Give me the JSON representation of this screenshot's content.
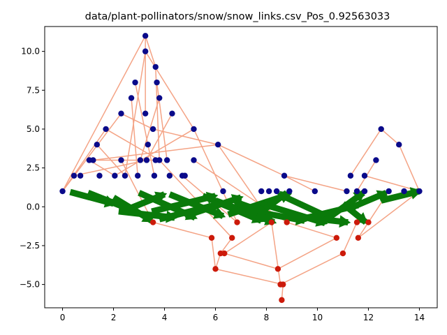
{
  "chart_data": {
    "type": "scatter",
    "title": "data/plant-pollinators/snow/snow_links.csv_Pos_0.92563033",
    "xlabel": "",
    "ylabel": "",
    "xlim": [
      -0.7,
      14.7
    ],
    "ylim": [
      -6.5,
      11.6
    ],
    "grid": false,
    "x_ticks": [
      0,
      2,
      4,
      6,
      8,
      10,
      12,
      14
    ],
    "x_tick_labels": [
      "0",
      "2",
      "4",
      "6",
      "8",
      "10",
      "12",
      "14"
    ],
    "y_ticks": [
      -5.0,
      -2.5,
      0.0,
      2.5,
      5.0,
      7.5,
      10.0
    ],
    "y_tick_labels": [
      "−5.0",
      "−2.5",
      "0.0",
      "2.5",
      "5.0",
      "7.5",
      "10.0"
    ],
    "colors": {
      "top_nodes": "#0a0a8a",
      "bottom_nodes": "#cc1a0a",
      "edges": "#f4a385",
      "positive_arrows": "#0a7a0a"
    },
    "series": [
      {
        "kind": "top_nodes",
        "points": [
          [
            0,
            1
          ],
          [
            0.45,
            2
          ],
          [
            0.7,
            2
          ],
          [
            1.05,
            3
          ],
          [
            1.2,
            3
          ],
          [
            1.35,
            4
          ],
          [
            1.45,
            2
          ],
          [
            1.7,
            5
          ],
          [
            2.05,
            2
          ],
          [
            2.3,
            6
          ],
          [
            2.3,
            3
          ],
          [
            2.45,
            2
          ],
          [
            2.7,
            7
          ],
          [
            2.85,
            8
          ],
          [
            2.95,
            2
          ],
          [
            3.05,
            3
          ],
          [
            3.25,
            11
          ],
          [
            3.25,
            10
          ],
          [
            3.25,
            6
          ],
          [
            3.3,
            3
          ],
          [
            3.35,
            4
          ],
          [
            3.55,
            5
          ],
          [
            3.6,
            2
          ],
          [
            3.65,
            3
          ],
          [
            3.65,
            9
          ],
          [
            3.7,
            8
          ],
          [
            3.8,
            7
          ],
          [
            3.8,
            3
          ],
          [
            4.1,
            3
          ],
          [
            4.2,
            2
          ],
          [
            4.3,
            6
          ],
          [
            4.7,
            2
          ],
          [
            4.8,
            2
          ],
          [
            5.15,
            5
          ],
          [
            5.15,
            3
          ],
          [
            6.1,
            4
          ],
          [
            6.3,
            1
          ],
          [
            7.8,
            1
          ],
          [
            8.1,
            1
          ],
          [
            8.4,
            1
          ],
          [
            8.7,
            2
          ],
          [
            8.9,
            1
          ],
          [
            9.9,
            1
          ],
          [
            11.15,
            1
          ],
          [
            11.3,
            2
          ],
          [
            11.55,
            1
          ],
          [
            11.85,
            2
          ],
          [
            11.85,
            1
          ],
          [
            12.3,
            3
          ],
          [
            12.5,
            5
          ],
          [
            12.8,
            1
          ],
          [
            13.2,
            4
          ],
          [
            13.4,
            1
          ],
          [
            14,
            1
          ]
        ]
      },
      {
        "kind": "bottom_nodes",
        "points": [
          [
            3.55,
            -1
          ],
          [
            5.85,
            -2
          ],
          [
            6.0,
            -4
          ],
          [
            6.2,
            -3
          ],
          [
            6.35,
            -3
          ],
          [
            6.65,
            -2
          ],
          [
            6.85,
            -1
          ],
          [
            8.2,
            -1
          ],
          [
            8.45,
            -4
          ],
          [
            8.55,
            -5
          ],
          [
            8.6,
            -6
          ],
          [
            8.65,
            -5
          ],
          [
            8.8,
            -1
          ],
          [
            10.75,
            -2
          ],
          [
            11.0,
            -3
          ],
          [
            11.55,
            -1
          ],
          [
            11.6,
            -2
          ],
          [
            12.0,
            -1
          ]
        ]
      },
      {
        "kind": "edges",
        "segments": [
          [
            0,
            1,
            3.25,
            11
          ],
          [
            0,
            1,
            2.3,
            6
          ],
          [
            0,
            1,
            1.7,
            5
          ],
          [
            0.45,
            2,
            3.3,
            3
          ],
          [
            1.05,
            3,
            2.05,
            2
          ],
          [
            1.2,
            3,
            3.65,
            3
          ],
          [
            1.35,
            4,
            2.45,
            2
          ],
          [
            1.7,
            5,
            3.8,
            3
          ],
          [
            2.3,
            6,
            3.55,
            5
          ],
          [
            2.7,
            7,
            2.95,
            2
          ],
          [
            2.85,
            8,
            3.6,
            2
          ],
          [
            3.25,
            11,
            3.65,
            9
          ],
          [
            3.25,
            11,
            3.25,
            6
          ],
          [
            3.25,
            10,
            2.45,
            2
          ],
          [
            3.65,
            9,
            3.8,
            3
          ],
          [
            3.7,
            8,
            4.1,
            3
          ],
          [
            3.8,
            7,
            3.05,
            3
          ],
          [
            4.3,
            6,
            3.3,
            3
          ],
          [
            5.15,
            5,
            3.25,
            10
          ],
          [
            5.15,
            5,
            2.05,
            2
          ],
          [
            6.1,
            4,
            3.55,
            5
          ],
          [
            6.1,
            4,
            1.2,
            3
          ],
          [
            6.1,
            4,
            8.7,
            2
          ],
          [
            8.7,
            2,
            11.15,
            1
          ],
          [
            8.7,
            2,
            9.9,
            1
          ],
          [
            12.5,
            5,
            11.3,
            2
          ],
          [
            12.5,
            5,
            13.2,
            4
          ],
          [
            13.2,
            4,
            14,
            1
          ],
          [
            12.3,
            3,
            11.55,
            1
          ],
          [
            14,
            1,
            11.85,
            2
          ],
          [
            3.55,
            -1,
            5.85,
            -2
          ],
          [
            5.85,
            -2,
            6.0,
            -4
          ],
          [
            6.0,
            -4,
            6.2,
            -3
          ],
          [
            6.2,
            -3,
            6.65,
            -2
          ],
          [
            6.35,
            -3,
            8.2,
            -1
          ],
          [
            6.65,
            -2,
            3.8,
            3
          ],
          [
            6.85,
            -1,
            4.7,
            2
          ],
          [
            8.45,
            -4,
            6.35,
            -3
          ],
          [
            8.45,
            -4,
            10.75,
            -2
          ],
          [
            8.55,
            -5,
            8.2,
            -1
          ],
          [
            8.6,
            -6,
            8.65,
            -5
          ],
          [
            8.65,
            -5,
            6.0,
            -4
          ],
          [
            8.8,
            -1,
            5.15,
            3
          ],
          [
            10.75,
            -2,
            8.8,
            -1
          ],
          [
            11.0,
            -3,
            11.55,
            -1
          ],
          [
            11.0,
            -3,
            8.55,
            -5
          ],
          [
            11.6,
            -2,
            12.0,
            -1
          ],
          [
            11.6,
            -2,
            14,
            1
          ],
          [
            12.0,
            -1,
            12.8,
            1
          ],
          [
            3.55,
            -1,
            2.3,
            3
          ],
          [
            6.85,
            -1,
            5.15,
            5
          ],
          [
            8.2,
            -1,
            6.1,
            4
          ]
        ]
      },
      {
        "kind": "positive_arrows",
        "segments": [
          [
            0.3,
            0.95,
            2.0,
            0.2
          ],
          [
            1.0,
            0.9,
            3.0,
            -0.4
          ],
          [
            2.0,
            0.6,
            3.5,
            -0.9
          ],
          [
            2.5,
            -0.2,
            4.0,
            0.8
          ],
          [
            3.0,
            0.9,
            5.2,
            -0.7
          ],
          [
            3.5,
            -0.3,
            6.0,
            0.7
          ],
          [
            4.2,
            0.8,
            6.3,
            -0.6
          ],
          [
            4.8,
            -0.6,
            7.0,
            0.6
          ],
          [
            5.5,
            0.7,
            7.8,
            -0.9
          ],
          [
            6.0,
            0.4,
            8.3,
            -1.0
          ],
          [
            6.5,
            -0.5,
            8.9,
            0.8
          ],
          [
            7.2,
            -0.2,
            9.5,
            -0.9
          ],
          [
            7.8,
            0.2,
            10.3,
            -1.05
          ],
          [
            8.5,
            0.8,
            10.6,
            -0.8
          ],
          [
            9.0,
            -0.6,
            11.2,
            -1.0
          ],
          [
            9.6,
            -0.7,
            11.6,
            0.1
          ],
          [
            10.2,
            -1.0,
            11.8,
            0.9
          ],
          [
            11.0,
            0.2,
            11.9,
            -1.0
          ],
          [
            11.4,
            0.0,
            12.7,
            0.9
          ],
          [
            12.5,
            0.4,
            14.0,
            1.0
          ],
          [
            7.9,
            -0.2,
            8.8,
            0.9
          ],
          [
            6.8,
            0.3,
            8.0,
            -0.4
          ],
          [
            2.2,
            -0.3,
            4.4,
            -0.7
          ],
          [
            3.8,
            -0.8,
            6.2,
            0.2
          ]
        ]
      }
    ]
  }
}
